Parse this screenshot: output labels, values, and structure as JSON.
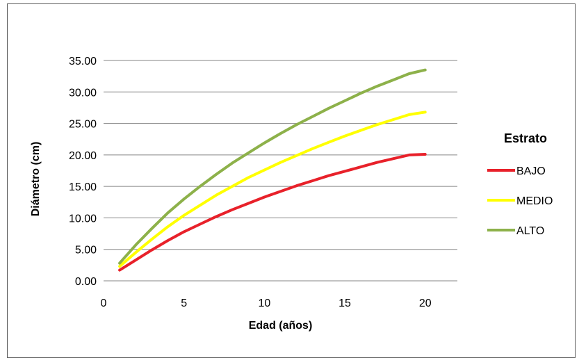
{
  "chart_data": {
    "type": "line",
    "title": "",
    "xlabel": "Edad (años)",
    "ylabel": "Diámetro (cm)",
    "xlim": [
      0,
      22
    ],
    "ylim": [
      0,
      35
    ],
    "x_ticks": [
      "0",
      "5",
      "10",
      "15",
      "20"
    ],
    "x_tick_values": [
      0,
      5,
      10,
      15,
      20
    ],
    "y_ticks": [
      "0.00",
      "5.00",
      "10.00",
      "15.00",
      "20.00",
      "25.00",
      "30.00",
      "35.00"
    ],
    "y_tick_values": [
      0,
      5,
      10,
      15,
      20,
      25,
      30,
      35
    ],
    "grid": "horizontal",
    "legend_title": "Estrato",
    "legend_position": "right",
    "x": [
      1,
      2,
      3,
      4,
      5,
      6,
      7,
      8,
      9,
      10,
      11,
      12,
      13,
      14,
      15,
      16,
      17,
      18,
      19,
      20
    ],
    "series": [
      {
        "name": "BAJO",
        "color": "#e8212a",
        "values": [
          1.7,
          3.3,
          4.9,
          6.4,
          7.8,
          9.0,
          10.2,
          11.3,
          12.3,
          13.3,
          14.2,
          15.1,
          15.9,
          16.7,
          17.4,
          18.1,
          18.8,
          19.4,
          20.0,
          20.1
        ]
      },
      {
        "name": "MEDIO",
        "color": "#ffff00",
        "values": [
          2.3,
          4.5,
          6.6,
          8.6,
          10.4,
          12.0,
          13.6,
          15.0,
          16.4,
          17.6,
          18.8,
          19.9,
          21.0,
          22.0,
          23.0,
          23.9,
          24.8,
          25.6,
          26.4,
          26.8
        ]
      },
      {
        "name": "ALTO",
        "color": "#8db14a",
        "values": [
          2.8,
          5.7,
          8.3,
          10.8,
          13.0,
          15.0,
          16.9,
          18.7,
          20.3,
          21.9,
          23.4,
          24.8,
          26.1,
          27.4,
          28.6,
          29.8,
          30.9,
          31.9,
          32.9,
          33.5
        ]
      }
    ]
  }
}
